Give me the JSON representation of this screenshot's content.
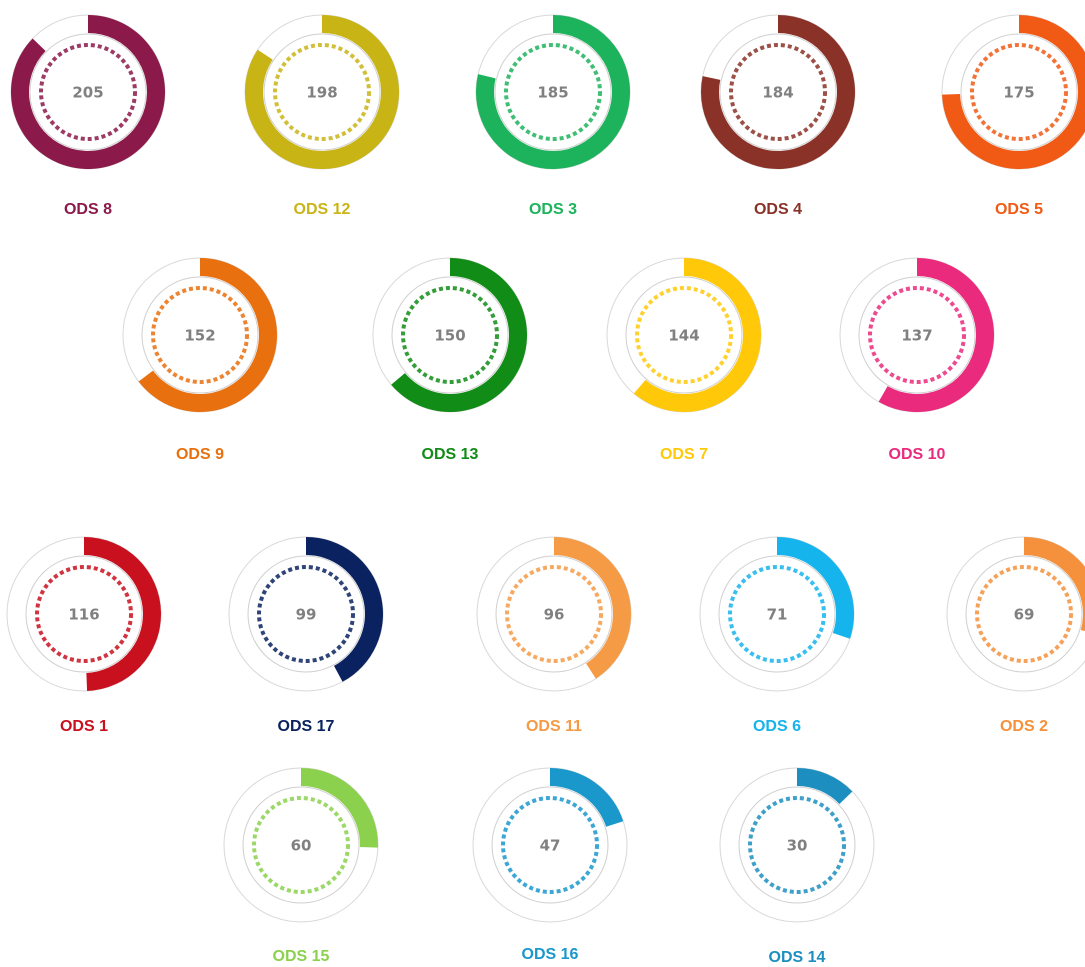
{
  "ylim": [
    0,
    235
  ],
  "gauges": [
    {
      "label": "ODS 8",
      "value": 205,
      "color": "#8b1a4a"
    },
    {
      "label": "ODS 12",
      "value": 198,
      "color": "#c9b416"
    },
    {
      "label": "ODS 3",
      "value": 185,
      "color": "#1db35c"
    },
    {
      "label": "ODS 4",
      "value": 184,
      "color": "#8b3228"
    },
    {
      "label": "ODS 5",
      "value": 175,
      "color": "#f05a14"
    },
    {
      "label": "ODS 9",
      "value": 152,
      "color": "#e8700f"
    },
    {
      "label": "ODS 13",
      "value": 150,
      "color": "#118c16"
    },
    {
      "label": "ODS 7",
      "value": 144,
      "color": "#ffc90a"
    },
    {
      "label": "ODS 10",
      "value": 137,
      "color": "#ea2a7d"
    },
    {
      "label": "ODS 1",
      "value": 116,
      "color": "#c8101e"
    },
    {
      "label": "ODS 17",
      "value": 99,
      "color": "#0a2360"
    },
    {
      "label": "ODS 11",
      "value": 96,
      "color": "#f59a45"
    },
    {
      "label": "ODS 6",
      "value": 71,
      "color": "#16b4ec"
    },
    {
      "label": "ODS 2",
      "value": 69,
      "color": "#f5913c"
    },
    {
      "label": "ODS 15",
      "value": 60,
      "color": "#8bd14e"
    },
    {
      "label": "ODS 16",
      "value": 47,
      "color": "#1a98cc"
    },
    {
      "label": "ODS 14",
      "value": 30,
      "color": "#1c8fc0"
    }
  ]
}
